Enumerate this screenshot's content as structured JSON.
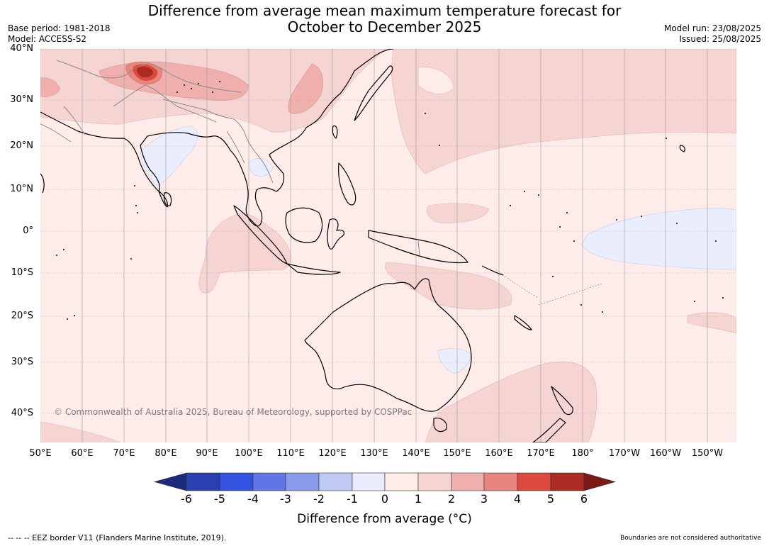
{
  "title_line1": "Difference from average mean maximum temperature forecast for",
  "title_line2": "October to December 2025",
  "meta_left": [
    "Base period: 1981-2018",
    "Model: ACCESS-S2"
  ],
  "meta_right": [
    "Model run: 23/08/2025",
    "Issued: 25/08/2025"
  ],
  "lat_labels": [
    "40°N",
    "30°N",
    "20°N",
    "10°N",
    "0°",
    "10°S",
    "20°S",
    "30°S",
    "40°S"
  ],
  "lon_labels": [
    "50°E",
    "60°E",
    "70°E",
    "80°E",
    "90°E",
    "100°E",
    "110°E",
    "120°E",
    "130°E",
    "140°E",
    "150°E",
    "160°E",
    "170°E",
    "180°",
    "170°W",
    "160°W",
    "150°W"
  ],
  "copyright": "© Commonwealth of Australia 2025, Bureau of Meteorology, supported by COSPPac",
  "colorbar": {
    "ticks": [
      "-6",
      "-5",
      "-4",
      "-3",
      "-2",
      "-1",
      "0",
      "1",
      "2",
      "3",
      "4",
      "5",
      "6"
    ],
    "colors": [
      "#1b2a7a",
      "#2940b0",
      "#3452e0",
      "#5e76e6",
      "#8a9bec",
      "#c1c9f5",
      "#eaedfb",
      "#fdecea",
      "#f6d4d2",
      "#efb0ad",
      "#e8857f",
      "#dc4a3d",
      "#ab2a22",
      "#7a1a16"
    ],
    "label": "Difference from average ($^\\circ$C)",
    "label_display": "Difference from average (°C)"
  },
  "footer_left": "--  --  -- EEZ border V11 (Flanders Marine Institute, 2019).",
  "footer_right": "Boundaries are not considered authoritative"
}
